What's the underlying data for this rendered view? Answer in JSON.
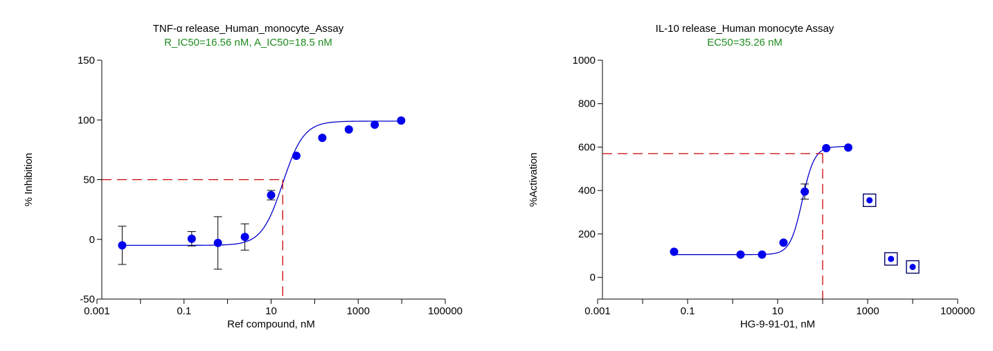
{
  "colors": {
    "points": "#0000ee",
    "curve": "#0000cc",
    "guide": "#cc0000",
    "subtitle": "#1e8c1e",
    "axis": "#000000"
  },
  "chart_data": [
    {
      "type": "scatter",
      "title": "TNF-α release_Human_monocyte_Assay",
      "subtitle": "R_IC50=16.56 nM, A_IC50=18.5 nM",
      "xlabel": "Ref compound, nM",
      "ylabel": "% Inhibition",
      "xscale": "log",
      "xlim": [
        0.001,
        100000
      ],
      "ylim": [
        -50,
        150
      ],
      "xticks": [
        "0.001",
        "0.1",
        "10",
        "1000",
        "100000"
      ],
      "yticks": [
        "-50",
        "0",
        "50",
        "100",
        "150"
      ],
      "grid": false,
      "points": [
        {
          "x": 0.0038,
          "y": -5,
          "err": 16
        },
        {
          "x": 0.15,
          "y": 0.5,
          "err": 6
        },
        {
          "x": 0.6,
          "y": -3,
          "err": 22
        },
        {
          "x": 2.5,
          "y": 2,
          "err": 11
        },
        {
          "x": 10,
          "y": 37,
          "err": 4
        },
        {
          "x": 38,
          "y": 70,
          "err": 0
        },
        {
          "x": 150,
          "y": 85,
          "err": 0
        },
        {
          "x": 610,
          "y": 92,
          "err": 0
        },
        {
          "x": 2400,
          "y": 96,
          "err": 0
        },
        {
          "x": 9700,
          "y": 99.5,
          "err": 0
        }
      ],
      "fit": {
        "bottom": -5,
        "top": 99,
        "ec50": 18.5,
        "hill": 1.8
      },
      "marker": {
        "x": 18.5,
        "y": 50
      }
    },
    {
      "type": "scatter",
      "title": "IL-10 release_Human monocyte Assay",
      "subtitle": "EC50=35.26 nM",
      "xlabel": "HG-9-91-01, nM",
      "ylabel": "%Activation",
      "xscale": "log",
      "xlim": [
        0.001,
        100000
      ],
      "ylim": [
        -100,
        1000
      ],
      "xticks": [
        "0.001",
        "0.1",
        "10",
        "1000",
        "100000"
      ],
      "yticks": [
        "0",
        "200",
        "400",
        "600",
        "800",
        "1000"
      ],
      "grid": false,
      "points": [
        {
          "x": 0.05,
          "y": 118,
          "err": 0
        },
        {
          "x": 1.5,
          "y": 105,
          "err": 0
        },
        {
          "x": 4.5,
          "y": 105,
          "err": 0
        },
        {
          "x": 13.5,
          "y": 160,
          "err": 0
        },
        {
          "x": 40,
          "y": 395,
          "err": 35
        },
        {
          "x": 120,
          "y": 595,
          "err": 0
        },
        {
          "x": 370,
          "y": 598,
          "err": 0
        }
      ],
      "excluded_points": [
        {
          "x": 1100,
          "y": 355
        },
        {
          "x": 3300,
          "y": 85
        },
        {
          "x": 10000,
          "y": 48
        }
      ],
      "fit": {
        "bottom": 105,
        "top": 603,
        "ec50": 35.26,
        "hill": 3.2,
        "xmax": 370
      },
      "marker": {
        "x": 100,
        "y": 570
      }
    }
  ]
}
